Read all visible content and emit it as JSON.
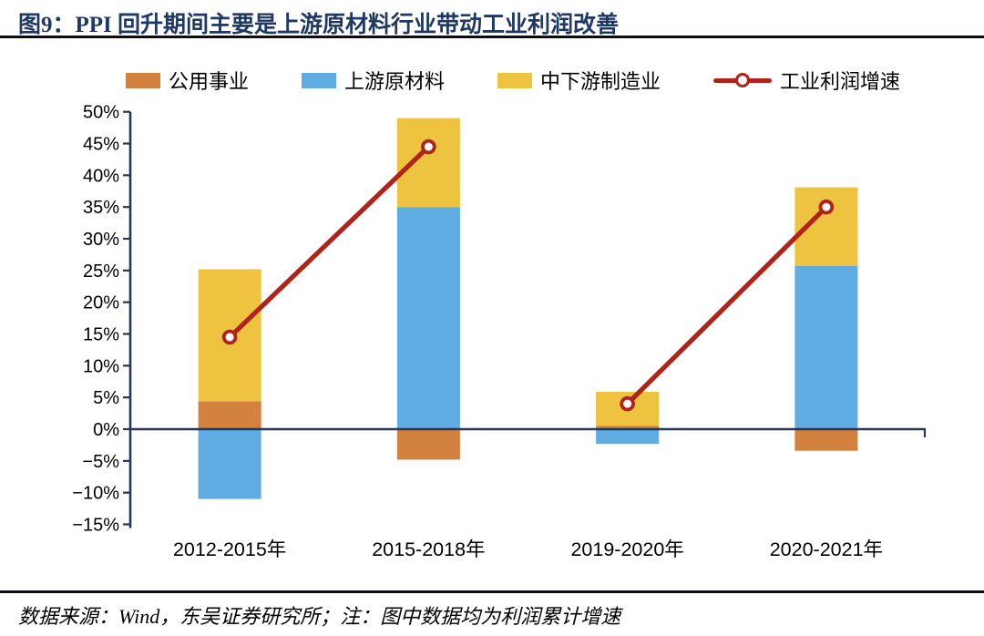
{
  "page": {
    "title": "图9：PPI 回升期间主要是上游原材料行业带动工业利润改善",
    "footer": "数据来源：Wind，东吴证券研究所；注：图中数据均为利润累计增速"
  },
  "colors": {
    "title": "#1F3864",
    "axis": "#24365B",
    "utilities": "#D3813F",
    "upstream": "#5FACE2",
    "downstream": "#EDC33F",
    "profit_line": "#B02318",
    "tick_text": "#000000"
  },
  "legend": {
    "items": [
      {
        "label": "公用事业",
        "marker": "swatch",
        "color_key": "utilities"
      },
      {
        "label": "上游原材料",
        "marker": "swatch",
        "color_key": "upstream"
      },
      {
        "label": "中下游制造业",
        "marker": "swatch",
        "color_key": "downstream"
      },
      {
        "label": "工业利润增速",
        "marker": "line-open-circle",
        "color_key": "profit_line"
      }
    ]
  },
  "chart_data": {
    "type": "bar",
    "subtype": "stacked-columns-with-line-overlay",
    "title": "PPI 回升期间主要是上游原材料行业带动工业利润改善",
    "xlabel": "",
    "ylabel": "",
    "categories": [
      "2012-2015年",
      "2015-2018年",
      "2019-2020年",
      "2020-2021年"
    ],
    "series": [
      {
        "name": "公用事业",
        "type": "bar",
        "color_key": "utilities",
        "values": [
          4.4,
          -4.8,
          0.5,
          -3.4
        ]
      },
      {
        "name": "上游原材料",
        "type": "bar",
        "color_key": "upstream",
        "values": [
          -11.0,
          35.0,
          -2.3,
          25.7
        ]
      },
      {
        "name": "中下游制造业",
        "type": "bar",
        "color_key": "downstream",
        "values": [
          20.8,
          14.0,
          5.4,
          12.4
        ]
      }
    ],
    "line_series": {
      "name": "工业利润增速",
      "color_key": "profit_line",
      "marker": "open-circle",
      "values": [
        14.5,
        44.5,
        4.0,
        35.0
      ],
      "segments": [
        [
          0,
          1
        ],
        [
          2,
          3
        ]
      ]
    },
    "ylim": [
      -15,
      50
    ],
    "ytick_step": 5,
    "yticks": [
      {
        "value": 50,
        "label": "50%"
      },
      {
        "value": 45,
        "label": "45%"
      },
      {
        "value": 40,
        "label": "40%"
      },
      {
        "value": 35,
        "label": "35%"
      },
      {
        "value": 30,
        "label": "30%"
      },
      {
        "value": 25,
        "label": "25%"
      },
      {
        "value": 20,
        "label": "20%"
      },
      {
        "value": 15,
        "label": "15%"
      },
      {
        "value": 10,
        "label": "10%"
      },
      {
        "value": 5,
        "label": "5%"
      },
      {
        "value": 0,
        "label": "0%"
      },
      {
        "value": -5,
        "label": "−5%"
      },
      {
        "value": -10,
        "label": "−10%"
      },
      {
        "value": -15,
        "label": "−15%"
      }
    ],
    "grid": false,
    "legend_position": "top",
    "note": "图中数据均为利润累计增速"
  }
}
